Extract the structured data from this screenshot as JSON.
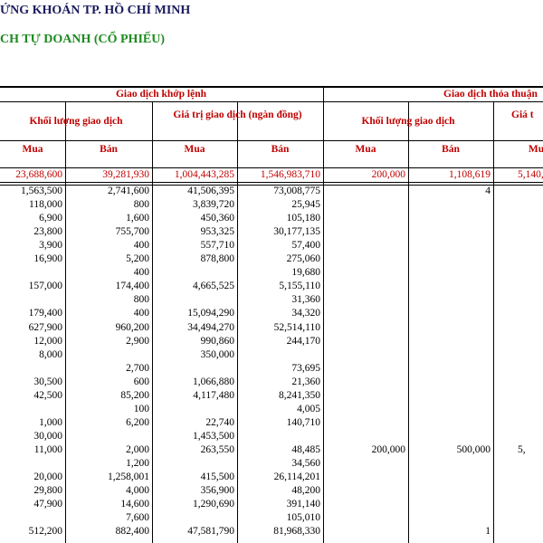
{
  "header": {
    "title": "ỨNG KHOÁN TP. HỒ CHÍ MINH",
    "subtitle": "CH TỰ DOANH (CỔ PHIẾU)"
  },
  "table": {
    "group_headers": [
      "Giao dịch khớp lệnh",
      "Giao dịch thỏa thuận"
    ],
    "sub_headers": [
      "Khối lượng giao dịch",
      "Giá trị giao dịch (ngàn đồng)",
      "Khối lượng giao dịch",
      "Giá t"
    ],
    "columns": [
      "Mua",
      "Bán",
      "Mua",
      "Bán",
      "Mua",
      "Bán",
      "Mu"
    ],
    "totals": [
      "23,688,600",
      "39,281,930",
      "1,004,443,285",
      "1,546,983,710",
      "200,000",
      "1,108,619",
      "5,140,"
    ],
    "rows": [
      [
        "1,563,500",
        "2,741,600",
        "41,506,395",
        "73,008,775",
        null,
        "4",
        null
      ],
      [
        "118,000",
        "800",
        "3,839,720",
        "25,945",
        null,
        null,
        null
      ],
      [
        "6,900",
        "1,600",
        "450,360",
        "105,180",
        null,
        null,
        null
      ],
      [
        "23,800",
        "755,700",
        "953,325",
        "30,177,135",
        null,
        null,
        null
      ],
      [
        "3,900",
        "400",
        "557,710",
        "57,400",
        null,
        null,
        null
      ],
      [
        "16,900",
        "5,200",
        "878,800",
        "275,060",
        null,
        null,
        null
      ],
      [
        null,
        "400",
        null,
        "19,680",
        null,
        null,
        null
      ],
      [
        "157,000",
        "174,400",
        "4,665,525",
        "5,155,110",
        null,
        null,
        null
      ],
      [
        null,
        "800",
        null,
        "31,360",
        null,
        null,
        null
      ],
      [
        "179,400",
        "400",
        "15,094,290",
        "34,320",
        null,
        null,
        null
      ],
      [
        "627,900",
        "960,200",
        "34,494,270",
        "52,514,110",
        null,
        null,
        null
      ],
      [
        "12,000",
        "2,900",
        "990,860",
        "244,170",
        null,
        null,
        null
      ],
      [
        "8,000",
        null,
        "350,000",
        null,
        null,
        null,
        null
      ],
      [
        null,
        "2,700",
        null,
        "73,695",
        null,
        null,
        null
      ],
      [
        "30,500",
        "600",
        "1,066,880",
        "21,360",
        null,
        null,
        null
      ],
      [
        "42,500",
        "85,200",
        "4,117,480",
        "8,241,350",
        null,
        null,
        null
      ],
      [
        null,
        "100",
        null,
        "4,005",
        null,
        null,
        null
      ],
      [
        "1,000",
        "6,200",
        "22,740",
        "140,710",
        null,
        null,
        null
      ],
      [
        "30,000",
        null,
        "1,453,500",
        null,
        null,
        null,
        null
      ],
      [
        "11,000",
        "2,000",
        "263,550",
        "48,485",
        "200,000",
        "500,000",
        "5,"
      ],
      [
        null,
        "1,200",
        null,
        "34,560",
        null,
        null,
        null
      ],
      [
        "20,000",
        "1,258,001",
        "415,500",
        "26,114,201",
        null,
        null,
        null
      ],
      [
        "29,800",
        "4,000",
        "356,900",
        "48,200",
        null,
        null,
        null
      ],
      [
        "47,900",
        "14,600",
        "1,290,690",
        "391,140",
        null,
        null,
        null
      ],
      [
        null,
        "7,600",
        null,
        "105,010",
        null,
        null,
        null
      ],
      [
        "512,200",
        "882,400",
        "47,581,790",
        "81,968,330",
        null,
        "1",
        null
      ]
    ]
  }
}
